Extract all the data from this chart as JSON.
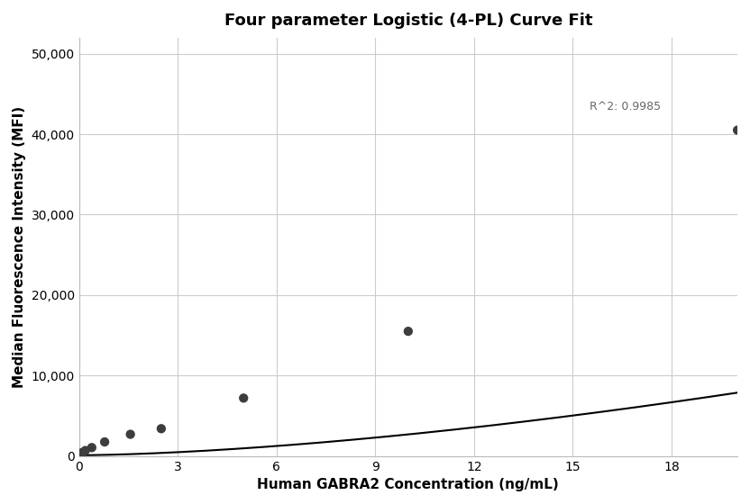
{
  "title": "Four parameter Logistic (4-PL) Curve Fit",
  "xlabel": "Human GABRA2 Concentration (ng/mL)",
  "ylabel": "Median Fluorescence Intensity (MFI)",
  "scatter_x": [
    0.098,
    0.195,
    0.39,
    0.781,
    1.563,
    2.5,
    5.0,
    10.0,
    20.0
  ],
  "scatter_y": [
    430,
    680,
    1050,
    1750,
    2700,
    3400,
    7200,
    15500,
    40500
  ],
  "xlim": [
    0,
    20
  ],
  "ylim": [
    0,
    52000
  ],
  "xticks": [
    0,
    3,
    6,
    9,
    12,
    15,
    18
  ],
  "yticks": [
    0,
    10000,
    20000,
    30000,
    40000,
    50000
  ],
  "ytick_labels": [
    "0",
    "10,000",
    "20,000",
    "30,000",
    "40,000",
    "50,000"
  ],
  "r2_text": "R^2: 0.9985",
  "r2_x": 15.5,
  "r2_y": 43000,
  "background_color": "#ffffff",
  "grid_color": "#cccccc",
  "dot_color": "#3d3d3d",
  "line_color": "#000000",
  "title_fontsize": 13,
  "label_fontsize": 11,
  "tick_fontsize": 10,
  "annotation_fontsize": 9
}
